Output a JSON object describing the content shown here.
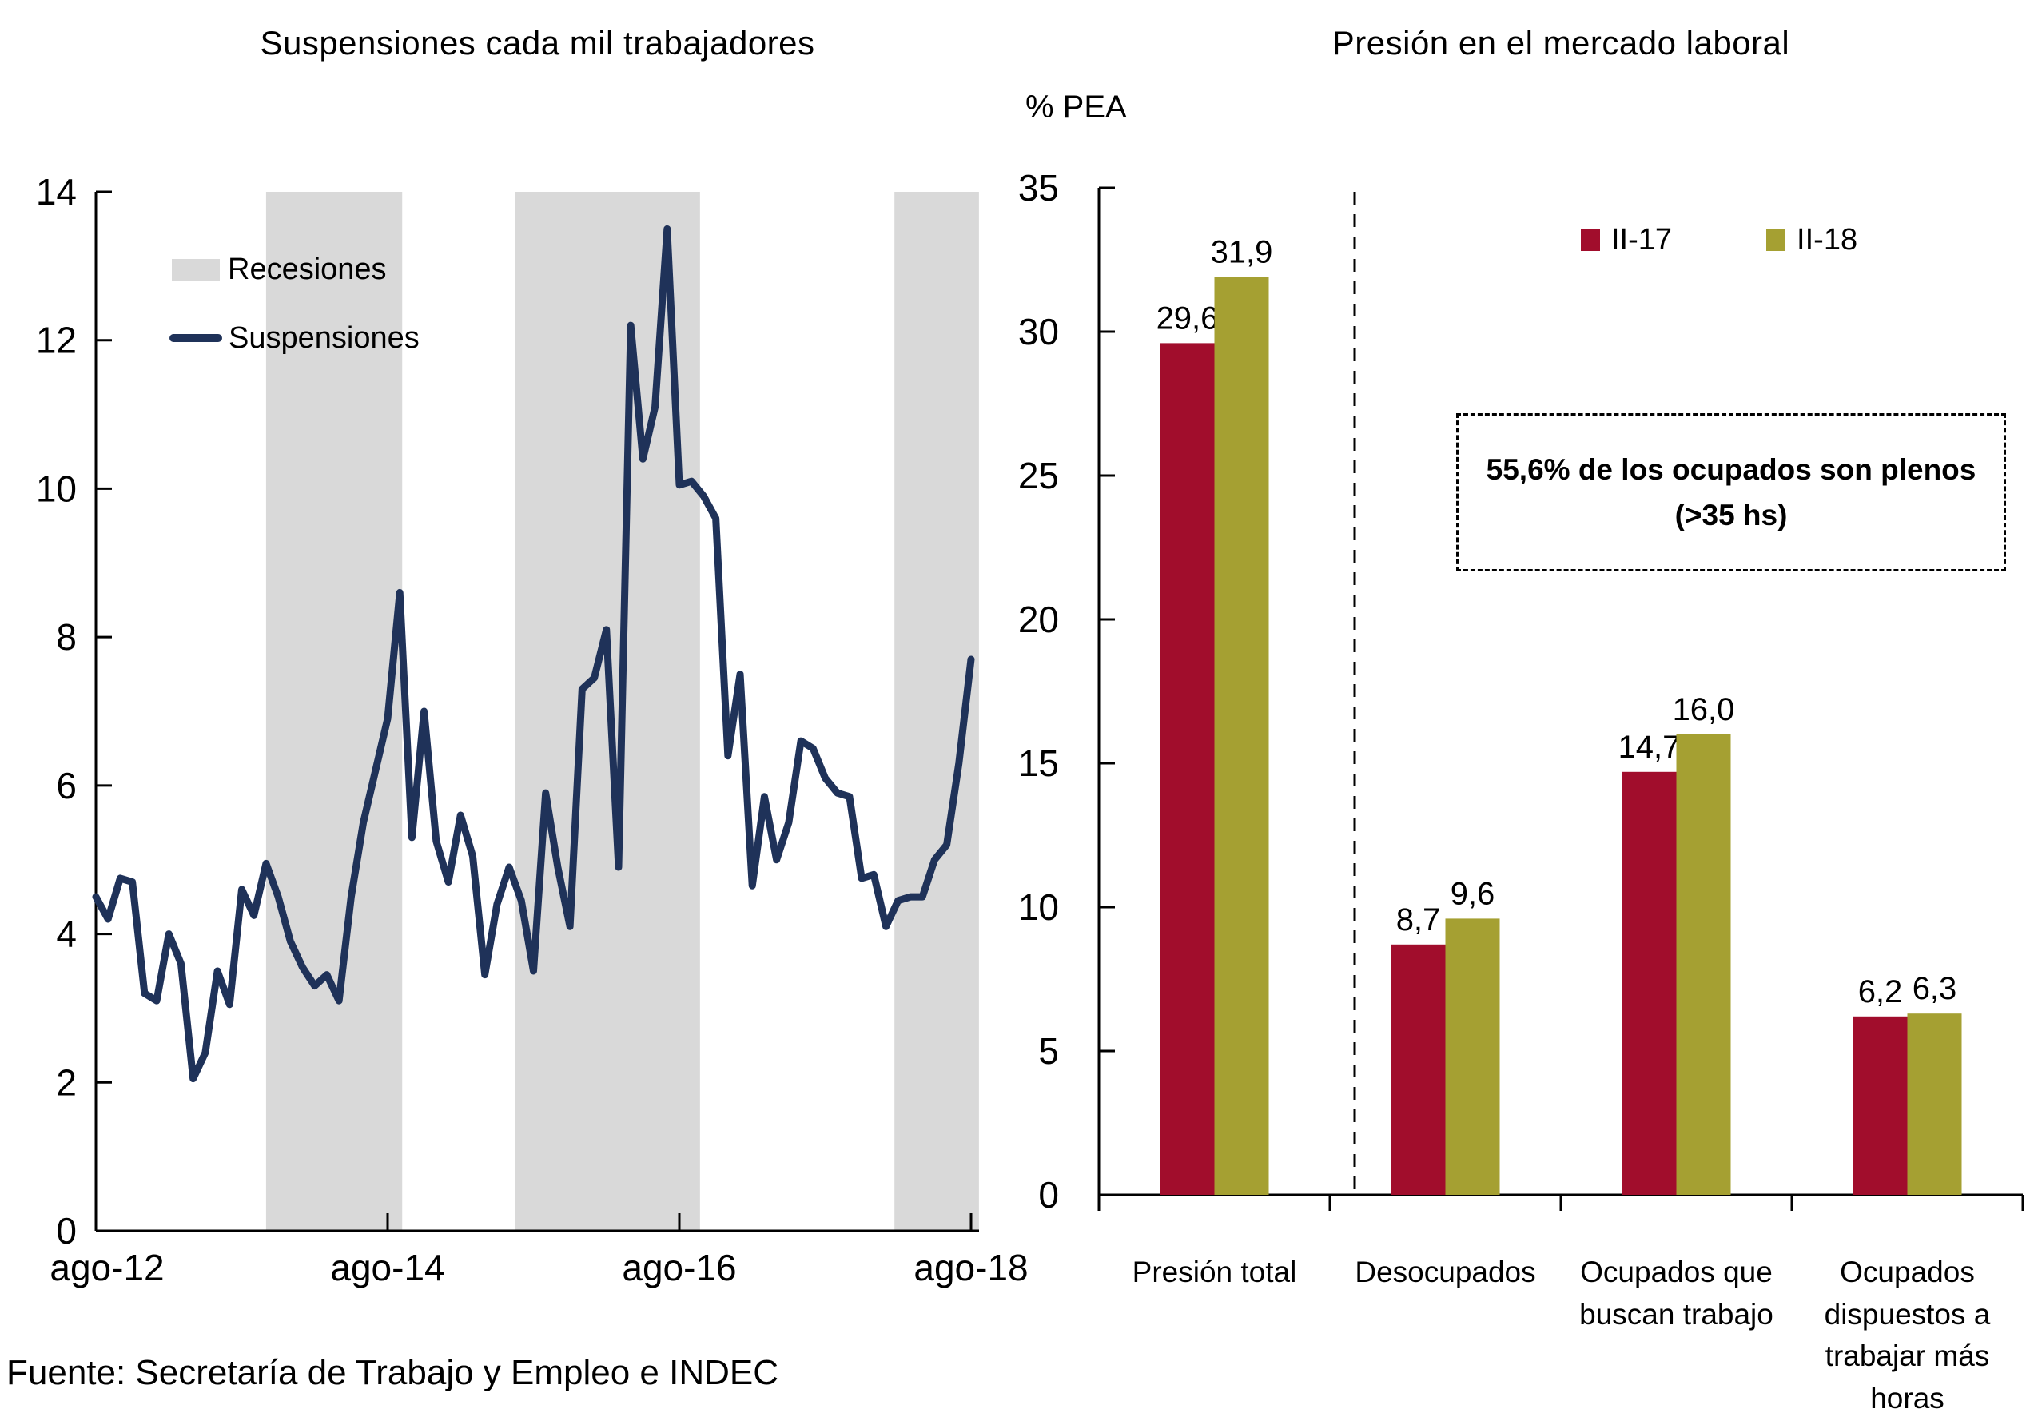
{
  "footer": {
    "source": "Fuente: Secretaría de Trabajo y Empleo e INDEC"
  },
  "chart_data": [
    {
      "id": "suspensiones",
      "type": "line",
      "title": "Suspensiones cada mil trabajadores",
      "xlabel": "",
      "ylabel": "",
      "ylim": [
        0,
        14
      ],
      "y_ticks": [
        0,
        2,
        4,
        6,
        8,
        10,
        12,
        14
      ],
      "x_tick_months": [
        0,
        24,
        48,
        72
      ],
      "x_tick_labels": [
        "ago-12",
        "ago-14",
        "ago-16",
        "ago-18"
      ],
      "x_max_month": 72.65,
      "grid": false,
      "legend_position": "top-left-inside",
      "legend": [
        {
          "label": "Recesiones",
          "kind": "band",
          "color": "#D9D9D9"
        },
        {
          "label": "Suspensiones",
          "kind": "line",
          "color": "#1F3259"
        }
      ],
      "recession_bands_months": [
        [
          14,
          25.2
        ],
        [
          34.5,
          49.7
        ],
        [
          65.7,
          72.65
        ]
      ],
      "series": [
        {
          "name": "Suspensiones",
          "color": "#1F3259",
          "x_start": "ago-12",
          "x_step": "1 month",
          "values": [
            4.5,
            4.2,
            4.75,
            4.7,
            3.2,
            3.1,
            4.0,
            3.6,
            2.05,
            2.4,
            3.5,
            3.05,
            4.6,
            4.25,
            4.95,
            4.5,
            3.9,
            3.55,
            3.3,
            3.45,
            3.1,
            4.5,
            5.5,
            6.2,
            6.9,
            8.6,
            5.3,
            7.0,
            5.25,
            4.7,
            5.6,
            5.05,
            3.45,
            4.4,
            4.9,
            4.45,
            3.5,
            5.9,
            4.9,
            4.1,
            7.3,
            7.45,
            8.1,
            4.9,
            12.2,
            10.4,
            11.1,
            13.5,
            10.05,
            10.1,
            9.9,
            9.6,
            6.4,
            7.5,
            4.65,
            5.85,
            5.0,
            5.5,
            6.6,
            6.5,
            6.1,
            5.9,
            5.85,
            4.75,
            4.8,
            4.1,
            4.45,
            4.5,
            4.5,
            5.0,
            5.2,
            6.3,
            7.7
          ]
        }
      ]
    },
    {
      "id": "presion",
      "type": "bar",
      "title": "Presión en el mercado laboral",
      "xlabel": "",
      "ylabel": "% PEA",
      "ylim": [
        0,
        35
      ],
      "y_ticks": [
        0,
        5,
        10,
        15,
        20,
        25,
        30,
        35
      ],
      "grid": false,
      "legend_position": "top-right-inside",
      "categories": [
        "Presión total",
        "Desocupados",
        "Ocupados que buscan trabajo",
        "Ocupados dispuestos a trabajar más horas"
      ],
      "series": [
        {
          "name": "II-17",
          "color": "#A10D2C",
          "values": [
            29.6,
            8.7,
            14.7,
            6.2
          ],
          "labels": [
            "29,6",
            "8,7",
            "14,7",
            "6,2"
          ]
        },
        {
          "name": "II-18",
          "color": "#A5A032",
          "values": [
            31.9,
            9.6,
            16.0,
            6.3
          ],
          "labels": [
            "31,9",
            "9,6",
            "16,0",
            "6,3"
          ]
        }
      ],
      "separator_after_category_index": 0,
      "annotation": {
        "line1": "55,6% de los ocupados son plenos",
        "line2": "(>35 hs)"
      }
    }
  ]
}
